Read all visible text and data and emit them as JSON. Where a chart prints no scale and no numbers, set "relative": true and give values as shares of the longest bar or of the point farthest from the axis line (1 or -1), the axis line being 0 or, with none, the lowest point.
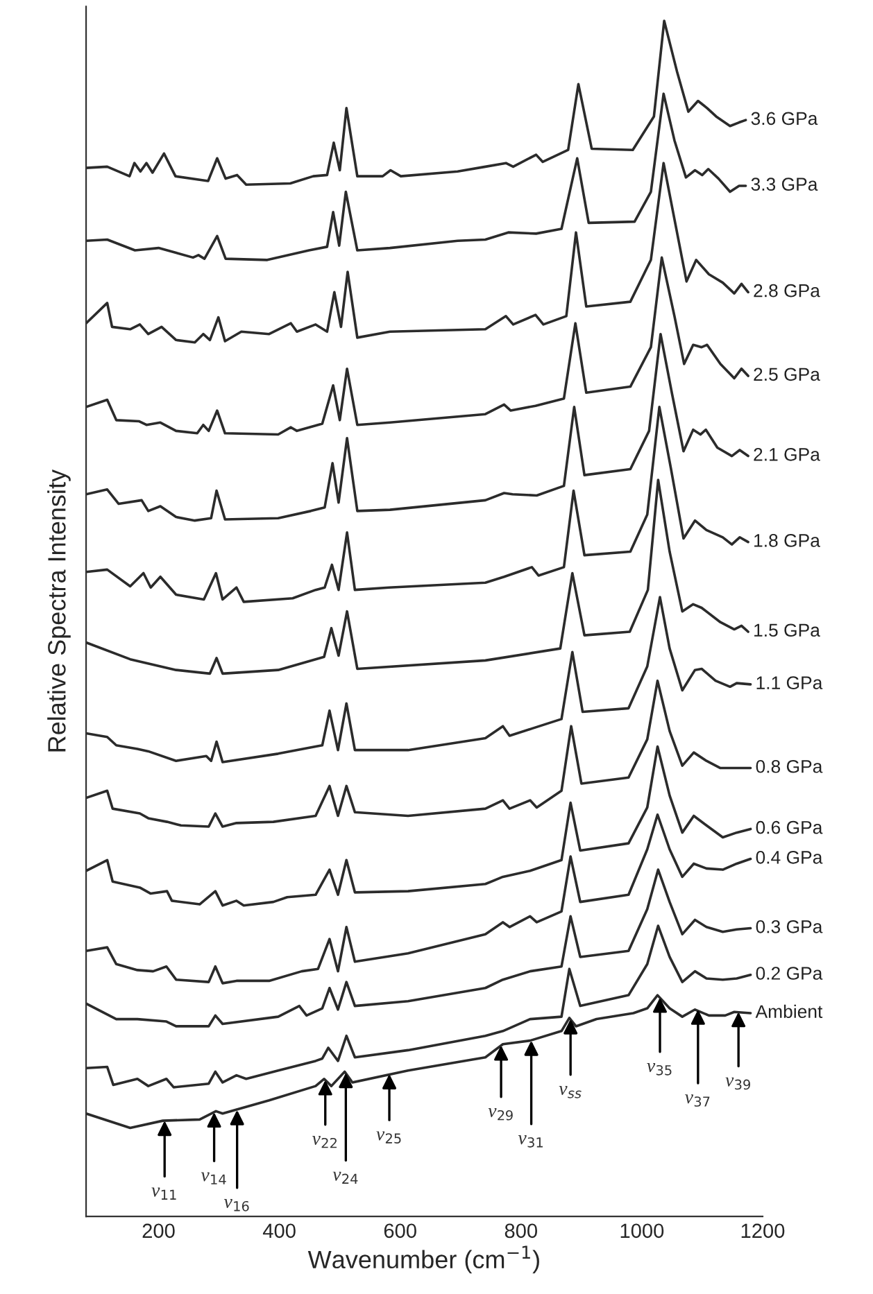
{
  "chart_data": {
    "type": "line",
    "relative": true,
    "xlabel": "Wavenumber (cm$^{−1}$)",
    "ylabel": "Relative Spectra Intensity",
    "xlim": [
      80,
      1200
    ],
    "xticks": [
      200,
      400,
      600,
      800,
      1000,
      1200
    ],
    "tick_labels": "x",
    "series": [
      {
        "name": "3.6 GPa",
        "color": "#2b2b2b",
        "x": [
          80,
          115,
          152,
          160,
          170,
          180,
          190,
          209,
          228,
          282,
          297,
          311,
          330,
          345,
          418,
          456,
          479,
          490,
          500,
          511,
          529,
          571,
          584,
          601,
          695,
          741,
          775,
          787,
          825,
          836,
          878,
          895,
          917,
          985,
          1020,
          1037,
          1058,
          1077,
          1093,
          1108,
          1123,
          1146,
          1161,
          1172
        ],
        "values": [
          0.877,
          0.878,
          0.87,
          0.881,
          0.874,
          0.881,
          0.873,
          0.889,
          0.87,
          0.866,
          0.885,
          0.868,
          0.871,
          0.863,
          0.864,
          0.87,
          0.871,
          0.898,
          0.875,
          0.927,
          0.87,
          0.87,
          0.875,
          0.87,
          0.874,
          0.878,
          0.881,
          0.878,
          0.888,
          0.882,
          0.892,
          0.947,
          0.893,
          0.892,
          0.92,
          1.0,
          0.958,
          0.924,
          0.933,
          0.927,
          0.92,
          0.912,
          0.915,
          0.917
        ]
      },
      {
        "name": "3.3 GPa",
        "color": "#2b2b2b",
        "x": [
          80,
          115,
          161,
          200,
          257,
          266,
          276,
          297,
          311,
          380,
          449,
          479,
          489,
          499,
          510,
          529,
          583,
          695,
          741,
          779,
          825,
          867,
          893,
          912,
          988,
          1015,
          1036,
          1054,
          1073,
          1088,
          1100,
          1110,
          1127,
          1146,
          1161,
          1172
        ],
        "values": [
          0.816,
          0.817,
          0.808,
          0.81,
          0.802,
          0.804,
          0.801,
          0.82,
          0.801,
          0.8,
          0.808,
          0.811,
          0.84,
          0.812,
          0.857,
          0.808,
          0.81,
          0.816,
          0.817,
          0.823,
          0.822,
          0.826,
          0.885,
          0.831,
          0.832,
          0.857,
          0.939,
          0.9,
          0.869,
          0.875,
          0.871,
          0.876,
          0.868,
          0.857,
          0.862,
          0.862
        ]
      },
      {
        "name": "2.8 GPa",
        "color": "#2b2b2b",
        "x": [
          80,
          115,
          123,
          153,
          169,
          183,
          205,
          229,
          260,
          274,
          285,
          299,
          310,
          337,
          383,
          419,
          429,
          460,
          479,
          491,
          502,
          513,
          529,
          583,
          741,
          775,
          787,
          824,
          837,
          875,
          891,
          908,
          981,
          1015,
          1036,
          1054,
          1074,
          1090,
          1111,
          1134,
          1153,
          1165,
          1176
        ],
        "values": [
          0.747,
          0.764,
          0.744,
          0.742,
          0.746,
          0.738,
          0.744,
          0.733,
          0.731,
          0.738,
          0.733,
          0.752,
          0.732,
          0.74,
          0.738,
          0.747,
          0.74,
          0.746,
          0.74,
          0.773,
          0.744,
          0.79,
          0.735,
          0.74,
          0.742,
          0.753,
          0.746,
          0.754,
          0.746,
          0.753,
          0.823,
          0.761,
          0.765,
          0.8,
          0.881,
          0.834,
          0.782,
          0.8,
          0.788,
          0.781,
          0.772,
          0.78,
          0.773
        ]
      },
      {
        "name": "2.5 GPa",
        "color": "#2b2b2b",
        "x": [
          80,
          115,
          130,
          168,
          180,
          203,
          229,
          264,
          274,
          283,
          297,
          310,
          398,
          419,
          429,
          471,
          489,
          500,
          512,
          529,
          583,
          741,
          772,
          783,
          824,
          871,
          890,
          908,
          981,
          1015,
          1033,
          1054,
          1070,
          1085,
          1099,
          1108,
          1130,
          1153,
          1165,
          1176
        ],
        "values": [
          0.677,
          0.683,
          0.666,
          0.665,
          0.662,
          0.664,
          0.657,
          0.655,
          0.662,
          0.657,
          0.674,
          0.655,
          0.654,
          0.66,
          0.657,
          0.663,
          0.695,
          0.666,
          0.709,
          0.662,
          0.664,
          0.671,
          0.679,
          0.674,
          0.678,
          0.684,
          0.747,
          0.689,
          0.694,
          0.727,
          0.802,
          0.753,
          0.713,
          0.729,
          0.727,
          0.729,
          0.713,
          0.701,
          0.709,
          0.703
        ]
      },
      {
        "name": "2.1 GPa",
        "color": "#2b2b2b",
        "x": [
          80,
          115,
          134,
          172,
          183,
          203,
          229,
          260,
          287,
          296,
          310,
          398,
          452,
          475,
          488,
          498,
          512,
          529,
          583,
          741,
          772,
          786,
          826,
          871,
          888,
          905,
          981,
          1012,
          1031,
          1050,
          1069,
          1085,
          1097,
          1106,
          1125,
          1149,
          1162,
          1176
        ],
        "values": [
          0.604,
          0.608,
          0.596,
          0.599,
          0.59,
          0.594,
          0.585,
          0.582,
          0.584,
          0.607,
          0.583,
          0.584,
          0.59,
          0.593,
          0.63,
          0.597,
          0.651,
          0.59,
          0.591,
          0.599,
          0.605,
          0.604,
          0.603,
          0.611,
          0.677,
          0.62,
          0.625,
          0.657,
          0.738,
          0.688,
          0.64,
          0.658,
          0.654,
          0.658,
          0.643,
          0.636,
          0.641,
          0.636
        ]
      },
      {
        "name": "1.8 GPa",
        "color": "#2b2b2b",
        "x": [
          80,
          115,
          153,
          175,
          187,
          203,
          229,
          275,
          295,
          306,
          329,
          341,
          422,
          460,
          475,
          487,
          498,
          512,
          525,
          581,
          741,
          772,
          818,
          829,
          871,
          887,
          905,
          981,
          1009,
          1029,
          1048,
          1069,
          1088,
          1107,
          1134,
          1149,
          1162,
          1176
        ],
        "values": [
          0.539,
          0.541,
          0.527,
          0.538,
          0.526,
          0.535,
          0.52,
          0.516,
          0.538,
          0.516,
          0.526,
          0.514,
          0.517,
          0.524,
          0.526,
          0.545,
          0.524,
          0.572,
          0.524,
          0.526,
          0.53,
          0.535,
          0.543,
          0.536,
          0.543,
          0.607,
          0.553,
          0.556,
          0.587,
          0.677,
          0.626,
          0.567,
          0.582,
          0.574,
          0.568,
          0.562,
          0.568,
          0.564
        ]
      },
      {
        "name": "1.5 GPa",
        "color": "#2b2b2b",
        "x": [
          80,
          153,
          229,
          285,
          296,
          306,
          398,
          433,
          474,
          486,
          498,
          512,
          529,
          741,
          865,
          885,
          905,
          980,
          1010,
          1027,
          1046,
          1067,
          1085,
          1099,
          1130,
          1153,
          1165,
          1176
        ],
        "values": [
          0.48,
          0.466,
          0.457,
          0.454,
          0.467,
          0.454,
          0.457,
          0.462,
          0.468,
          0.492,
          0.469,
          0.506,
          0.458,
          0.465,
          0.475,
          0.538,
          0.486,
          0.489,
          0.524,
          0.616,
          0.556,
          0.506,
          0.512,
          0.509,
          0.497,
          0.491,
          0.494,
          0.489
        ]
      },
      {
        "name": "1.1 GPa",
        "color": "#2b2b2b",
        "x": [
          80,
          115,
          130,
          165,
          183,
          229,
          279,
          287,
          296,
          306,
          398,
          460,
          471,
          483,
          497,
          511,
          525,
          613,
          741,
          770,
          781,
          818,
          867,
          885,
          902,
          978,
          1009,
          1030,
          1046,
          1067,
          1088,
          1099,
          1122,
          1146,
          1157,
          1180
        ],
        "values": [
          0.404,
          0.401,
          0.394,
          0.391,
          0.389,
          0.381,
          0.385,
          0.381,
          0.397,
          0.38,
          0.387,
          0.393,
          0.394,
          0.423,
          0.39,
          0.429,
          0.39,
          0.39,
          0.4,
          0.41,
          0.402,
          0.408,
          0.416,
          0.472,
          0.422,
          0.425,
          0.46,
          0.518,
          0.475,
          0.44,
          0.457,
          0.458,
          0.448,
          0.443,
          0.446,
          0.445
        ]
      },
      {
        "name": "0.8 GPa",
        "color": "#2b2b2b",
        "x": [
          80,
          115,
          124,
          169,
          183,
          214,
          237,
          283,
          294,
          306,
          329,
          390,
          460,
          483,
          497,
          511,
          525,
          613,
          741,
          770,
          781,
          815,
          826,
          867,
          883,
          900,
          978,
          1009,
          1026,
          1046,
          1067,
          1086,
          1107,
          1130,
          1153,
          1180
        ],
        "values": [
          0.35,
          0.356,
          0.341,
          0.337,
          0.333,
          0.33,
          0.327,
          0.326,
          0.337,
          0.326,
          0.329,
          0.33,
          0.335,
          0.36,
          0.335,
          0.36,
          0.338,
          0.335,
          0.341,
          0.348,
          0.341,
          0.348,
          0.342,
          0.356,
          0.41,
          0.362,
          0.367,
          0.399,
          0.448,
          0.406,
          0.377,
          0.388,
          0.381,
          0.375,
          0.375,
          0.375
        ]
      },
      {
        "name": "0.6 GPa",
        "color": "#2b2b2b",
        "x": [
          80,
          115,
          124,
          169,
          187,
          214,
          222,
          268,
          294,
          306,
          329,
          341,
          390,
          413,
          460,
          483,
          497,
          511,
          525,
          613,
          741,
          770,
          815,
          867,
          882,
          898,
          978,
          1009,
          1026,
          1046,
          1067,
          1086,
          1107,
          1134,
          1157,
          1180
        ],
        "values": [
          0.289,
          0.298,
          0.28,
          0.275,
          0.27,
          0.272,
          0.264,
          0.261,
          0.272,
          0.26,
          0.264,
          0.26,
          0.263,
          0.267,
          0.269,
          0.29,
          0.269,
          0.298,
          0.271,
          0.272,
          0.278,
          0.284,
          0.289,
          0.298,
          0.346,
          0.306,
          0.312,
          0.342,
          0.393,
          0.352,
          0.321,
          0.335,
          0.327,
          0.317,
          0.321,
          0.324
        ]
      },
      {
        "name": "0.4 GPa",
        "color": "#2b2b2b",
        "x": [
          80,
          115,
          130,
          165,
          191,
          213,
          229,
          283,
          294,
          306,
          329,
          383,
          437,
          464,
          483,
          497,
          511,
          525,
          613,
          741,
          770,
          781,
          815,
          826,
          867,
          882,
          898,
          978,
          1009,
          1026,
          1046,
          1067,
          1086,
          1107,
          1134,
          1157,
          1180
        ],
        "values": [
          0.222,
          0.225,
          0.211,
          0.206,
          0.205,
          0.209,
          0.198,
          0.196,
          0.209,
          0.195,
          0.197,
          0.197,
          0.205,
          0.207,
          0.232,
          0.205,
          0.242,
          0.213,
          0.22,
          0.236,
          0.246,
          0.242,
          0.251,
          0.246,
          0.255,
          0.301,
          0.263,
          0.269,
          0.307,
          0.336,
          0.307,
          0.284,
          0.295,
          0.291,
          0.29,
          0.295,
          0.299
        ]
      },
      {
        "name": "0.3 GPa",
        "color": "#2b2b2b",
        "x": [
          80,
          130,
          165,
          213,
          229,
          283,
          294,
          306,
          398,
          433,
          445,
          471,
          483,
          497,
          511,
          525,
          613,
          741,
          770,
          815,
          867,
          882,
          898,
          978,
          1009,
          1027,
          1046,
          1067,
          1088,
          1107,
          1134,
          1157,
          1180
        ],
        "values": [
          0.178,
          0.165,
          0.165,
          0.163,
          0.159,
          0.159,
          0.168,
          0.161,
          0.167,
          0.176,
          0.168,
          0.174,
          0.191,
          0.173,
          0.196,
          0.176,
          0.18,
          0.191,
          0.198,
          0.205,
          0.209,
          0.251,
          0.217,
          0.222,
          0.257,
          0.29,
          0.263,
          0.236,
          0.248,
          0.242,
          0.238,
          0.24,
          0.241
        ]
      },
      {
        "name": "0.2 GPa",
        "color": "#2b2b2b",
        "x": [
          80,
          115,
          125,
          165,
          183,
          213,
          225,
          283,
          294,
          306,
          329,
          345,
          398,
          460,
          471,
          481,
          497,
          511,
          525,
          613,
          741,
          770,
          815,
          867,
          880,
          898,
          978,
          1009,
          1027,
          1046,
          1067,
          1088,
          1107,
          1134,
          1157,
          1180
        ],
        "values": [
          0.124,
          0.125,
          0.11,
          0.115,
          0.109,
          0.115,
          0.108,
          0.111,
          0.121,
          0.112,
          0.118,
          0.115,
          0.122,
          0.13,
          0.132,
          0.141,
          0.13,
          0.151,
          0.133,
          0.139,
          0.151,
          0.155,
          0.165,
          0.167,
          0.207,
          0.176,
          0.185,
          0.211,
          0.243,
          0.217,
          0.196,
          0.205,
          0.199,
          0.198,
          0.199,
          0.202
        ]
      },
      {
        "name": "Ambient",
        "color": "#2b2b2b",
        "x": [
          80,
          153,
          207,
          268,
          295,
          306,
          383,
          460,
          474,
          486,
          508,
          521,
          613,
          741,
          770,
          815,
          867,
          880,
          891,
          925,
          986,
          1009,
          1026,
          1046,
          1067,
          1088,
          1111,
          1138,
          1153,
          1180
        ],
        "values": [
          0.086,
          0.074,
          0.08,
          0.081,
          0.088,
          0.086,
          0.097,
          0.109,
          0.115,
          0.109,
          0.121,
          0.112,
          0.122,
          0.133,
          0.144,
          0.147,
          0.155,
          0.166,
          0.159,
          0.165,
          0.17,
          0.174,
          0.185,
          0.174,
          0.167,
          0.173,
          0.168,
          0.168,
          0.171,
          0.17
        ]
      }
    ],
    "annotations": [
      {
        "text": "v$_{11}$",
        "x": 210,
        "y": 0.08
      },
      {
        "text": "v$_{14}$",
        "x": 292,
        "y": 0.087
      },
      {
        "text": "v$_{16}$",
        "x": 330,
        "y": 0.089
      },
      {
        "text": "v$_{22}$",
        "x": 476,
        "y": 0.114
      },
      {
        "text": "v$_{24}$",
        "x": 510,
        "y": 0.12
      },
      {
        "text": "v$_{25}$",
        "x": 582,
        "y": 0.119
      },
      {
        "text": "v$_{29}$",
        "x": 767,
        "y": 0.143
      },
      {
        "text": "v$_{31}$",
        "x": 817,
        "y": 0.147
      },
      {
        "text": "v$_{ss}$",
        "x": 882,
        "y": 0.165
      },
      {
        "text": "v$_{35}$",
        "x": 1030,
        "y": 0.183
      },
      {
        "text": "v$_{37}$",
        "x": 1093,
        "y": 0.173
      },
      {
        "text": "v$_{39}$",
        "x": 1160,
        "y": 0.171
      }
    ]
  }
}
